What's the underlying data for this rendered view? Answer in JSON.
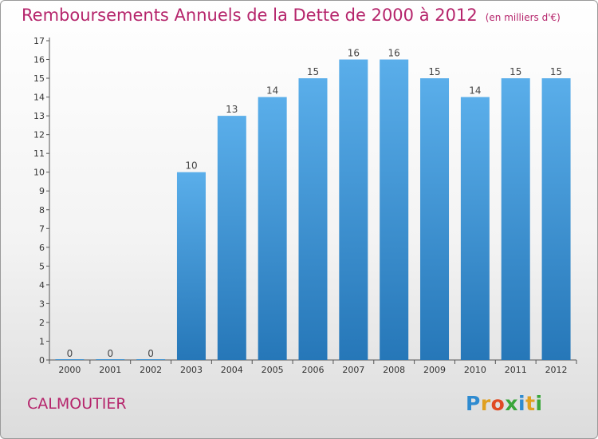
{
  "title": "Remboursements Annuels de la Dette de 2000 à 2012",
  "unit": "(en milliers d'€)",
  "city": "CALMOUTIER",
  "logo": {
    "letters": [
      "P",
      "r",
      "o",
      "x",
      "i",
      "t",
      "i"
    ],
    "colors": [
      "#2f8bd0",
      "#e0a020",
      "#e04a24",
      "#3aa63a",
      "#2f8bd0",
      "#e0a020",
      "#3aa63a"
    ]
  },
  "colors": {
    "bar": "#3f97db",
    "title": "#b5246b",
    "axis": "#333333"
  },
  "chart_data": {
    "type": "bar",
    "title": "Remboursements Annuels de la Dette de 2000 à 2012",
    "subtitle": "(en milliers d'€)",
    "categories": [
      "2000",
      "2001",
      "2002",
      "2003",
      "2004",
      "2005",
      "2006",
      "2007",
      "2008",
      "2009",
      "2010",
      "2011",
      "2012"
    ],
    "values": [
      0,
      0,
      0,
      10,
      13,
      14,
      15,
      16,
      16,
      15,
      14,
      15,
      15
    ],
    "xlabel": "",
    "ylabel": "",
    "ylim": [
      0,
      17
    ],
    "yticks": [
      0,
      1,
      2,
      3,
      4,
      5,
      6,
      7,
      8,
      9,
      10,
      11,
      12,
      13,
      14,
      15,
      16,
      17
    ],
    "grid": false,
    "data_labels": true
  }
}
